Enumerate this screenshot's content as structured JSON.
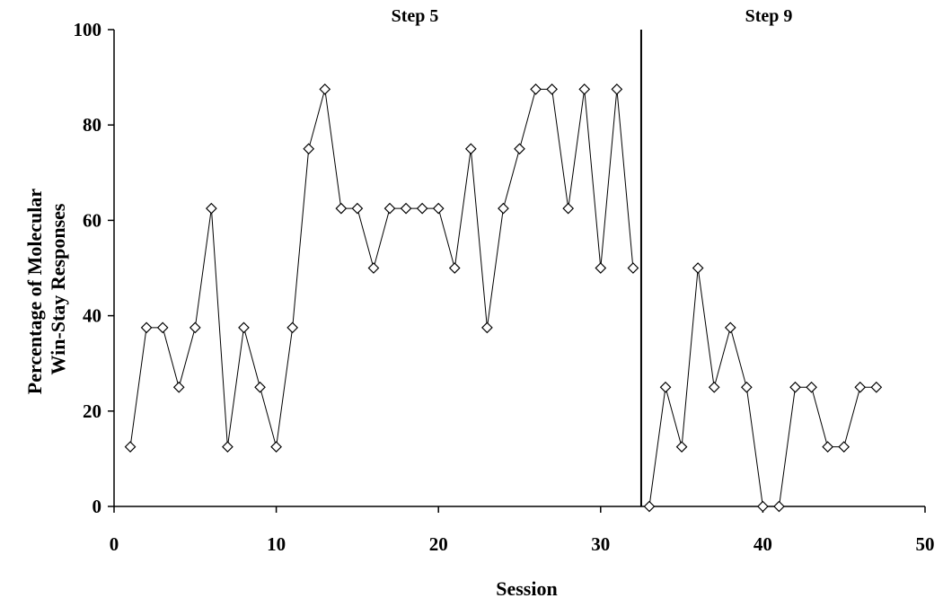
{
  "chart_data": {
    "type": "line",
    "xlabel": "Session",
    "ylabel_lines": [
      "Percentage of Molecular",
      "Win-Stay Responses"
    ],
    "xlim": [
      0,
      50
    ],
    "ylim": [
      0,
      100
    ],
    "x_ticks": [
      0,
      10,
      20,
      30,
      40,
      50
    ],
    "y_ticks": [
      0,
      20,
      40,
      60,
      80,
      100
    ],
    "grid": false,
    "marker": "open-diamond",
    "phase_change_x": 32.5,
    "phases": [
      {
        "label": "Step 5",
        "x": [
          1,
          2,
          3,
          4,
          5,
          6,
          7,
          8,
          9,
          10,
          11,
          12,
          13,
          14,
          15,
          16,
          17,
          18,
          19,
          20,
          21,
          22,
          23,
          24,
          25,
          26,
          27,
          28,
          29,
          30,
          31,
          32
        ],
        "y": [
          12.5,
          37.5,
          37.5,
          25,
          37.5,
          62.5,
          12.5,
          37.5,
          25,
          12.5,
          37.5,
          75,
          87.5,
          62.5,
          62.5,
          50,
          62.5,
          62.5,
          62.5,
          62.5,
          50,
          75,
          37.5,
          62.5,
          75,
          87.5,
          87.5,
          62.5,
          87.5,
          50,
          87.5,
          50
        ]
      },
      {
        "label": "Step 9",
        "x": [
          33,
          34,
          35,
          36,
          37,
          38,
          39,
          40,
          41,
          42,
          43,
          44,
          45,
          46,
          47
        ],
        "y": [
          0,
          25,
          12.5,
          50,
          25,
          37.5,
          25,
          0,
          0,
          25,
          25,
          12.5,
          12.5,
          25,
          25
        ]
      }
    ]
  }
}
